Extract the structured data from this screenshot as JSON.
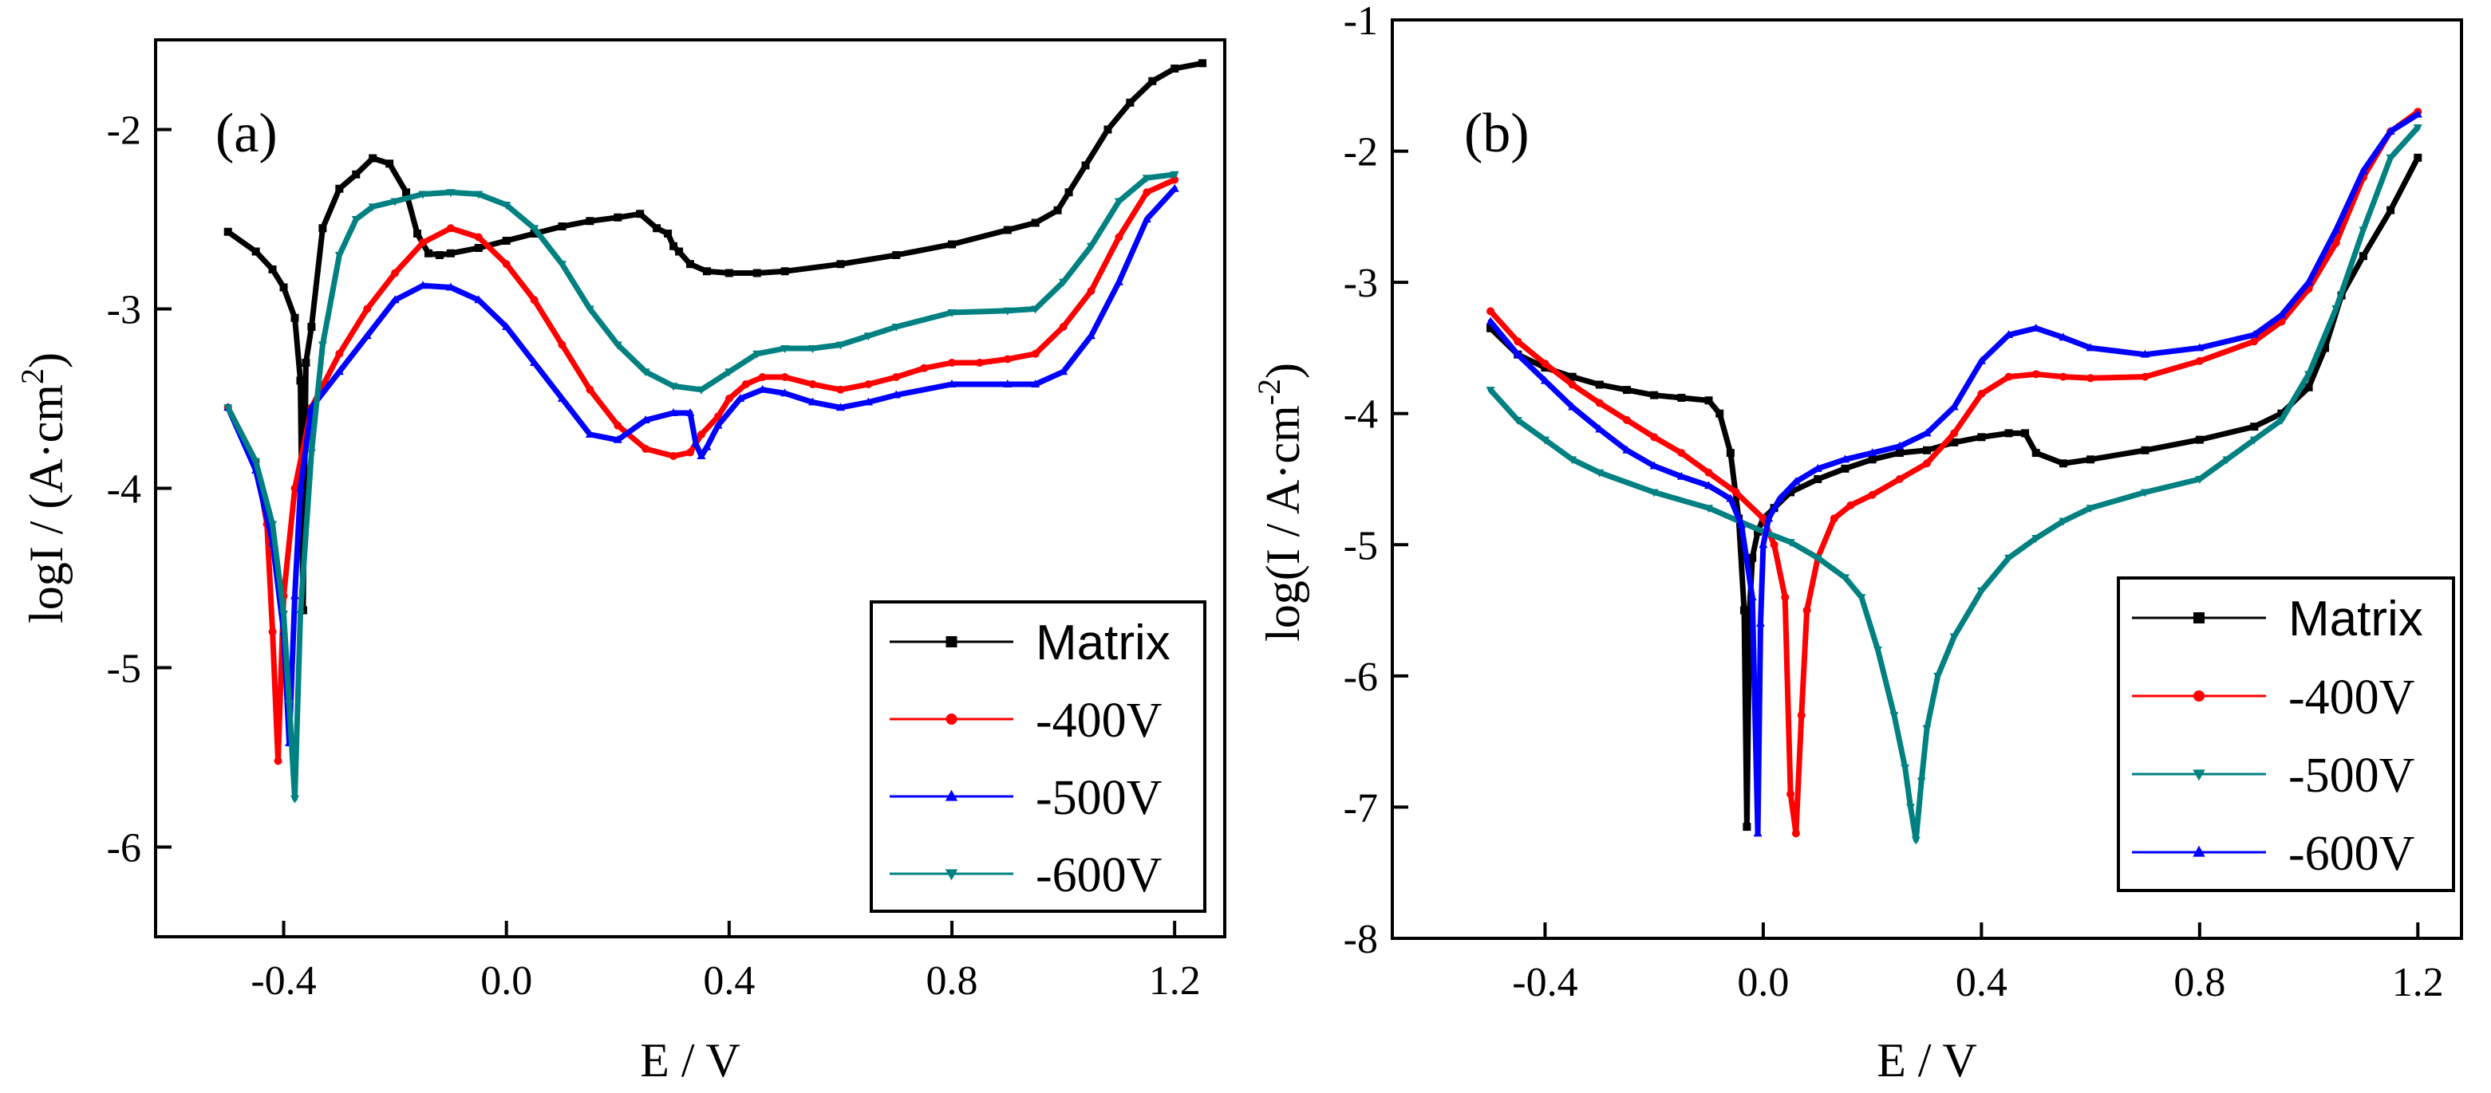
{
  "chart_data": [
    {
      "type": "line",
      "panel_label": "(a)",
      "xlabel": "E / V",
      "ylabel": "logI / (A·cm",
      "ylabel_sup": "2",
      "ylabel_close": ")",
      "xlim": [
        -0.63,
        1.29
      ],
      "ylim": [
        -6.5,
        -1.5
      ],
      "xticks": [
        -0.4,
        0.0,
        0.4,
        0.8,
        1.2
      ],
      "xtick_labels": [
        "-0.4",
        "0.0",
        "0.4",
        "0.8",
        "1.2"
      ],
      "yticks": [
        -6,
        -5,
        -4,
        -3,
        -2
      ],
      "ytick_labels": [
        "-6",
        "-5",
        "-4",
        "-3",
        "-2"
      ],
      "legend_position": "bottom-right",
      "series": [
        {
          "name": "Matrix",
          "color": "#000000",
          "marker": "square",
          "x": [
            -0.5,
            -0.45,
            -0.42,
            -0.4,
            -0.38,
            -0.37,
            -0.365,
            -0.36,
            -0.35,
            -0.33,
            -0.3,
            -0.27,
            -0.24,
            -0.21,
            -0.18,
            -0.16,
            -0.14,
            -0.12,
            -0.1,
            -0.05,
            0.0,
            0.05,
            0.1,
            0.15,
            0.2,
            0.24,
            0.27,
            0.29,
            0.3,
            0.31,
            0.33,
            0.36,
            0.4,
            0.45,
            0.5,
            0.6,
            0.7,
            0.8,
            0.9,
            0.95,
            0.99,
            1.01,
            1.04,
            1.08,
            1.12,
            1.16,
            1.2,
            1.25
          ],
          "y": [
            -2.57,
            -2.68,
            -2.78,
            -2.88,
            -3.05,
            -3.4,
            -4.68,
            -3.3,
            -3.1,
            -2.55,
            -2.33,
            -2.25,
            -2.16,
            -2.19,
            -2.35,
            -2.58,
            -2.69,
            -2.7,
            -2.69,
            -2.66,
            -2.62,
            -2.58,
            -2.54,
            -2.51,
            -2.49,
            -2.47,
            -2.55,
            -2.58,
            -2.65,
            -2.68,
            -2.75,
            -2.79,
            -2.8,
            -2.8,
            -2.79,
            -2.75,
            -2.7,
            -2.64,
            -2.56,
            -2.52,
            -2.45,
            -2.35,
            -2.2,
            -2.0,
            -1.85,
            -1.73,
            -1.66,
            -1.63
          ]
        },
        {
          "name": "-400V",
          "color": "#ff0000",
          "marker": "circle",
          "x": [
            -0.5,
            -0.45,
            -0.43,
            -0.42,
            -0.41,
            -0.4,
            -0.38,
            -0.35,
            -0.3,
            -0.25,
            -0.2,
            -0.15,
            -0.1,
            -0.05,
            0.0,
            0.05,
            0.1,
            0.15,
            0.2,
            0.25,
            0.3,
            0.33,
            0.35,
            0.38,
            0.4,
            0.43,
            0.46,
            0.5,
            0.55,
            0.6,
            0.65,
            0.7,
            0.75,
            0.8,
            0.85,
            0.9,
            0.95,
            1.0,
            1.05,
            1.1,
            1.15,
            1.2
          ],
          "y": [
            -3.55,
            -3.85,
            -4.2,
            -4.8,
            -5.52,
            -4.6,
            -4.0,
            -3.55,
            -3.25,
            -3.0,
            -2.8,
            -2.63,
            -2.55,
            -2.6,
            -2.75,
            -2.95,
            -3.2,
            -3.45,
            -3.65,
            -3.78,
            -3.82,
            -3.8,
            -3.7,
            -3.6,
            -3.5,
            -3.42,
            -3.38,
            -3.38,
            -3.42,
            -3.45,
            -3.42,
            -3.38,
            -3.33,
            -3.3,
            -3.3,
            -3.28,
            -3.25,
            -3.1,
            -2.9,
            -2.6,
            -2.35,
            -2.28
          ]
        },
        {
          "name": "-500V",
          "color": "#0000ff",
          "marker": "triangle-up",
          "x": [
            -0.5,
            -0.45,
            -0.42,
            -0.4,
            -0.39,
            -0.38,
            -0.37,
            -0.35,
            -0.3,
            -0.25,
            -0.2,
            -0.15,
            -0.1,
            -0.05,
            0.0,
            0.05,
            0.1,
            0.15,
            0.2,
            0.25,
            0.3,
            0.33,
            0.34,
            0.35,
            0.36,
            0.38,
            0.42,
            0.46,
            0.5,
            0.55,
            0.6,
            0.65,
            0.7,
            0.8,
            0.9,
            0.95,
            1.0,
            1.05,
            1.1,
            1.15,
            1.2
          ],
          "y": [
            -3.55,
            -3.9,
            -4.3,
            -4.8,
            -5.42,
            -4.6,
            -4.0,
            -3.55,
            -3.35,
            -3.15,
            -2.95,
            -2.87,
            -2.88,
            -2.95,
            -3.1,
            -3.3,
            -3.5,
            -3.7,
            -3.73,
            -3.62,
            -3.58,
            -3.58,
            -3.75,
            -3.82,
            -3.77,
            -3.65,
            -3.5,
            -3.45,
            -3.47,
            -3.52,
            -3.55,
            -3.52,
            -3.48,
            -3.42,
            -3.42,
            -3.42,
            -3.35,
            -3.15,
            -2.85,
            -2.5,
            -2.33
          ]
        },
        {
          "name": "-600V",
          "color": "#008080",
          "marker": "triangle-down",
          "x": [
            -0.5,
            -0.45,
            -0.42,
            -0.4,
            -0.39,
            -0.38,
            -0.37,
            -0.35,
            -0.33,
            -0.3,
            -0.27,
            -0.24,
            -0.2,
            -0.15,
            -0.1,
            -0.05,
            0.0,
            0.05,
            0.1,
            0.15,
            0.2,
            0.25,
            0.3,
            0.35,
            0.4,
            0.45,
            0.5,
            0.55,
            0.6,
            0.65,
            0.7,
            0.8,
            0.9,
            0.95,
            1.0,
            1.05,
            1.1,
            1.15,
            1.2
          ],
          "y": [
            -3.55,
            -3.85,
            -4.2,
            -4.7,
            -5.2,
            -5.73,
            -4.7,
            -3.8,
            -3.2,
            -2.7,
            -2.5,
            -2.43,
            -2.4,
            -2.36,
            -2.35,
            -2.36,
            -2.42,
            -2.55,
            -2.75,
            -3.0,
            -3.2,
            -3.35,
            -3.43,
            -3.45,
            -3.35,
            -3.25,
            -3.22,
            -3.22,
            -3.2,
            -3.15,
            -3.1,
            -3.02,
            -3.01,
            -3.0,
            -2.85,
            -2.65,
            -2.4,
            -2.27,
            -2.25
          ]
        }
      ]
    },
    {
      "type": "line",
      "panel_label": "(b)",
      "xlabel": "E / V",
      "ylabel": "log(I / A·cm",
      "ylabel_sup": "-2",
      "ylabel_close": ")",
      "xlim": [
        -0.68,
        1.28
      ],
      "ylim": [
        -8,
        -1
      ],
      "xticks": [
        -0.4,
        0.0,
        0.4,
        0.8,
        1.2
      ],
      "xtick_labels": [
        "-0.4",
        "0.0",
        "0.4",
        "0.8",
        "1.2"
      ],
      "yticks": [
        -8,
        -7,
        -6,
        -5,
        -4,
        -3,
        -2,
        -1
      ],
      "ytick_labels": [
        "-8",
        "-7",
        "-6",
        "-5",
        "-4",
        "-3",
        "-2",
        "-1"
      ],
      "legend_position": "bottom-right",
      "series": [
        {
          "name": "Matrix",
          "color": "#000000",
          "marker": "square",
          "x": [
            -0.5,
            -0.45,
            -0.4,
            -0.35,
            -0.3,
            -0.25,
            -0.2,
            -0.15,
            -0.1,
            -0.08,
            -0.06,
            -0.045,
            -0.035,
            -0.03,
            -0.025,
            -0.02,
            -0.01,
            0.0,
            0.02,
            0.05,
            0.1,
            0.15,
            0.2,
            0.25,
            0.3,
            0.35,
            0.4,
            0.45,
            0.48,
            0.5,
            0.55,
            0.6,
            0.7,
            0.8,
            0.9,
            0.95,
            1.0,
            1.03,
            1.06,
            1.1,
            1.15,
            1.2
          ],
          "y": [
            -3.35,
            -3.55,
            -3.65,
            -3.72,
            -3.78,
            -3.82,
            -3.86,
            -3.88,
            -3.9,
            -4.0,
            -4.3,
            -4.8,
            -5.5,
            -7.15,
            -5.5,
            -5.1,
            -4.9,
            -4.8,
            -4.72,
            -4.6,
            -4.5,
            -4.42,
            -4.35,
            -4.3,
            -4.28,
            -4.22,
            -4.18,
            -4.15,
            -4.15,
            -4.3,
            -4.38,
            -4.35,
            -4.28,
            -4.2,
            -4.1,
            -4.0,
            -3.8,
            -3.5,
            -3.1,
            -2.8,
            -2.45,
            -2.05
          ]
        },
        {
          "name": "-400V",
          "color": "#ff0000",
          "marker": "circle",
          "x": [
            -0.5,
            -0.45,
            -0.4,
            -0.35,
            -0.3,
            -0.25,
            -0.2,
            -0.15,
            -0.1,
            -0.05,
            0.0,
            0.02,
            0.04,
            0.05,
            0.06,
            0.07,
            0.08,
            0.1,
            0.13,
            0.16,
            0.2,
            0.25,
            0.3,
            0.35,
            0.4,
            0.45,
            0.5,
            0.55,
            0.6,
            0.7,
            0.8,
            0.9,
            0.95,
            1.0,
            1.05,
            1.1,
            1.15,
            1.2
          ],
          "y": [
            -3.22,
            -3.45,
            -3.62,
            -3.78,
            -3.92,
            -4.05,
            -4.18,
            -4.3,
            -4.45,
            -4.6,
            -4.8,
            -5.0,
            -5.4,
            -6.9,
            -7.2,
            -6.3,
            -5.5,
            -5.1,
            -4.8,
            -4.7,
            -4.62,
            -4.5,
            -4.38,
            -4.15,
            -3.85,
            -3.72,
            -3.7,
            -3.72,
            -3.73,
            -3.72,
            -3.6,
            -3.45,
            -3.3,
            -3.05,
            -2.7,
            -2.2,
            -1.85,
            -1.7
          ]
        },
        {
          "name": "-500V",
          "color": "#008080",
          "marker": "triangle-down",
          "x": [
            -0.5,
            -0.45,
            -0.4,
            -0.35,
            -0.3,
            -0.2,
            -0.1,
            0.0,
            0.05,
            0.1,
            0.15,
            0.18,
            0.21,
            0.24,
            0.26,
            0.27,
            0.28,
            0.29,
            0.3,
            0.32,
            0.35,
            0.4,
            0.45,
            0.5,
            0.55,
            0.6,
            0.7,
            0.8,
            0.85,
            0.9,
            0.95,
            1.0,
            1.05,
            1.1,
            1.15,
            1.2
          ],
          "y": [
            -3.82,
            -4.05,
            -4.2,
            -4.35,
            -4.45,
            -4.6,
            -4.72,
            -4.9,
            -4.98,
            -5.1,
            -5.25,
            -5.4,
            -5.8,
            -6.3,
            -6.7,
            -7.0,
            -7.25,
            -6.8,
            -6.4,
            -6.0,
            -5.7,
            -5.35,
            -5.1,
            -4.95,
            -4.82,
            -4.72,
            -4.6,
            -4.5,
            -4.35,
            -4.2,
            -4.05,
            -3.7,
            -3.2,
            -2.6,
            -2.05,
            -1.82
          ]
        },
        {
          "name": "-600V",
          "color": "#0000ff",
          "marker": "triangle-up",
          "x": [
            -0.5,
            -0.45,
            -0.4,
            -0.35,
            -0.3,
            -0.25,
            -0.2,
            -0.15,
            -0.1,
            -0.06,
            -0.04,
            -0.02,
            -0.01,
            -0.005,
            0.0,
            0.01,
            0.03,
            0.06,
            0.1,
            0.15,
            0.2,
            0.25,
            0.3,
            0.35,
            0.4,
            0.45,
            0.5,
            0.55,
            0.6,
            0.7,
            0.8,
            0.9,
            0.95,
            1.0,
            1.05,
            1.1,
            1.15,
            1.2
          ],
          "y": [
            -3.3,
            -3.55,
            -3.75,
            -3.95,
            -4.12,
            -4.28,
            -4.4,
            -4.48,
            -4.55,
            -4.65,
            -4.85,
            -5.4,
            -7.2,
            -5.6,
            -5.0,
            -4.8,
            -4.65,
            -4.52,
            -4.42,
            -4.35,
            -4.3,
            -4.25,
            -4.15,
            -3.95,
            -3.6,
            -3.4,
            -3.35,
            -3.42,
            -3.5,
            -3.55,
            -3.5,
            -3.4,
            -3.25,
            -3.0,
            -2.6,
            -2.15,
            -1.85,
            -1.72
          ]
        }
      ]
    }
  ]
}
